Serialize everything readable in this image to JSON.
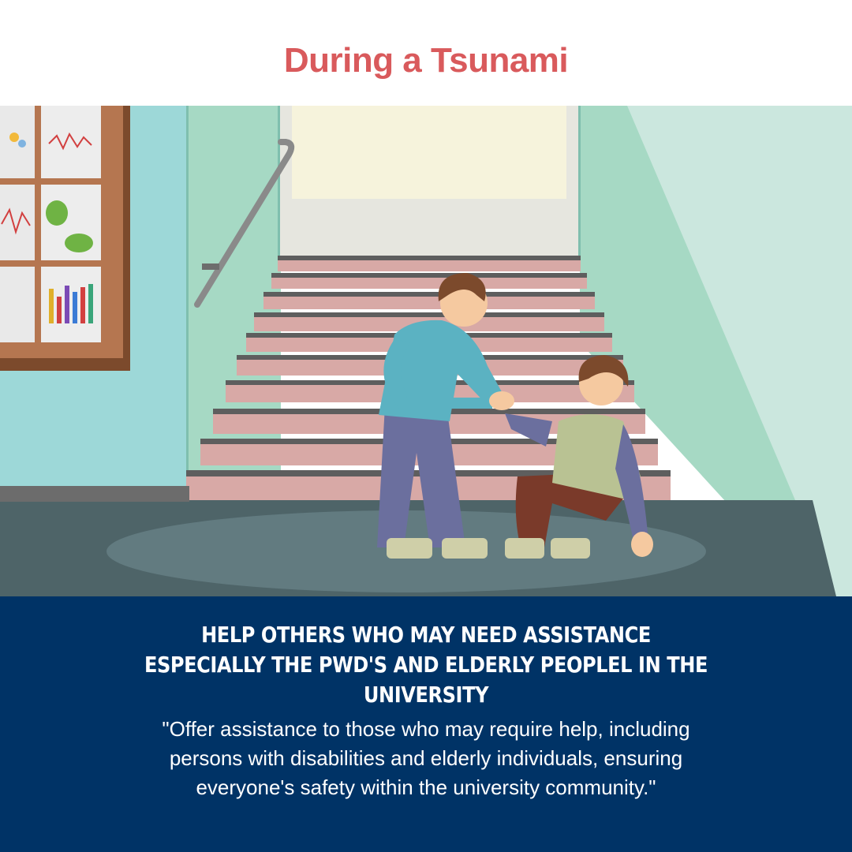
{
  "header": {
    "title": "During a Tsunami"
  },
  "illustration": {
    "alt_subject": "stairwell-helping-scene"
  },
  "panel": {
    "headline_line1": "HELP OTHERS WHO MAY NEED ASSISTANCE",
    "headline_line2": "ESPECIALLY THE PWD'S AND ELDERLY PEOPLEL IN THE",
    "headline_line3": "UNIVERSITY",
    "quote_line1": "\"Offer assistance to those who may require help, including",
    "quote_line2": "persons with disabilities and elderly individuals, ensuring",
    "quote_line3": "everyone's safety within the university community.\""
  },
  "colors": {
    "title": "#d95a5c",
    "panel_bg": "#003366",
    "wall_teal": "#9dd8d8",
    "wall_green": "#a6d9c4",
    "floor": "#4e6468",
    "stairs": "#d8a9a6"
  }
}
